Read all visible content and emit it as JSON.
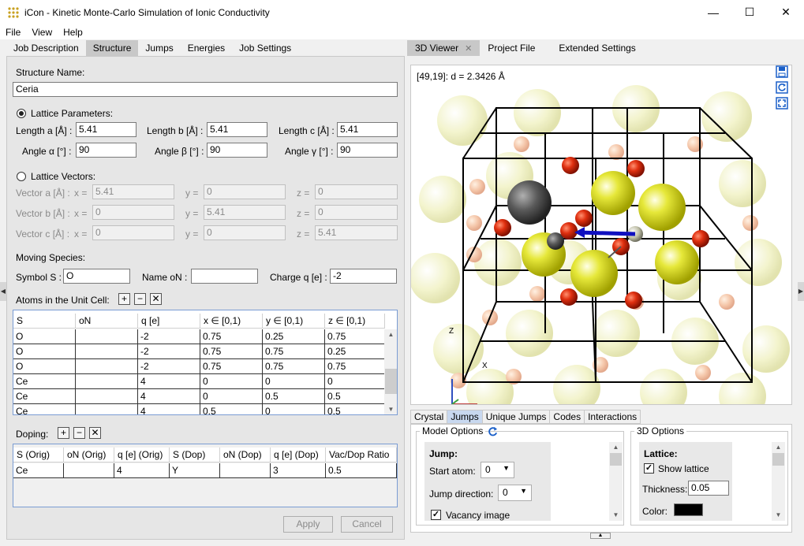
{
  "window": {
    "title": "iCon - Kinetic Monte-Carlo Simulation of Ionic Conductivity",
    "minimize": "—",
    "maximize": "☐",
    "close": "✕"
  },
  "menu": [
    "File",
    "View",
    "Help"
  ],
  "left_tabs": [
    "Job Description",
    "Structure",
    "Jumps",
    "Energies",
    "Job Settings"
  ],
  "structure": {
    "name_label": "Structure Name:",
    "name_value": "Ceria",
    "lattice_params_label": "Lattice Parameters:",
    "length_a_label": "Length a [Å] :",
    "length_a": "5.41",
    "length_b_label": "Length b [Å] :",
    "length_b": "5.41",
    "length_c_label": "Length c [Å] :",
    "length_c": "5.41",
    "angle_a_label": "Angle α [°] :",
    "angle_a": "90",
    "angle_b_label": "Angle β [°] :",
    "angle_b": "90",
    "angle_c_label": "Angle γ [°] :",
    "angle_c": "90",
    "lattice_vectors_label": "Lattice Vectors:",
    "vectors": [
      {
        "label": "Vector a [Å] :",
        "x": "5.41",
        "y": "0",
        "z": "0"
      },
      {
        "label": "Vector b [Å] :",
        "x": "0",
        "y": "5.41",
        "z": "0"
      },
      {
        "label": "Vector c [Å] :",
        "x": "0",
        "y": "0",
        "z": "5.41"
      }
    ],
    "x_label": "x =",
    "y_label": "y =",
    "z_label": "z =",
    "moving_species_label": "Moving Species:",
    "symbol_label": "Symbol S :",
    "symbol_value": "O",
    "name_on_label": "Name oN :",
    "name_on_value": "",
    "charge_label": "Charge q [e] :",
    "charge_value": "-2",
    "atoms_label": "Atoms in the Unit Cell:",
    "atoms_headers": [
      "S",
      "oN",
      "q [e]",
      "x ∈ [0,1)",
      "y ∈ [0,1)",
      "z ∈ [0,1)"
    ],
    "atoms_rows": [
      [
        "O",
        "",
        "-2",
        "0.75",
        "0.25",
        "0.75"
      ],
      [
        "O",
        "",
        "-2",
        "0.75",
        "0.75",
        "0.25"
      ],
      [
        "O",
        "",
        "-2",
        "0.75",
        "0.75",
        "0.75"
      ],
      [
        "Ce",
        "",
        "4",
        "0",
        "0",
        "0"
      ],
      [
        "Ce",
        "",
        "4",
        "0",
        "0.5",
        "0.5"
      ],
      [
        "Ce",
        "",
        "4",
        "0.5",
        "0",
        "0.5"
      ]
    ],
    "doping_label": "Doping:",
    "doping_headers": [
      "S (Orig)",
      "oN (Orig)",
      "q [e] (Orig)",
      "S (Dop)",
      "oN (Dop)",
      "q [e] (Dop)",
      "Vac/Dop Ratio"
    ],
    "doping_rows": [
      [
        "Ce",
        "",
        "4",
        "Y",
        "",
        "3",
        "0.5"
      ]
    ],
    "apply": "Apply",
    "cancel": "Cancel",
    "plus": "+",
    "minus": "−",
    "clear": "✕"
  },
  "right_tabs": {
    "viewer": "3D Viewer",
    "project": "Project File",
    "extended": "Extended Settings"
  },
  "viewer": {
    "readout": "[49,19]: d = 2.3426 Å",
    "axis_z": "Z",
    "axis_x": "X"
  },
  "bottom_tabs": [
    "Crystal",
    "Jumps",
    "Unique Jumps",
    "Codes",
    "Interactions"
  ],
  "model_options": {
    "title": "Model Options",
    "jump_label": "Jump:",
    "start_atom_label": "Start atom:",
    "start_atom": "0",
    "jump_direction_label": "Jump direction:",
    "jump_direction": "0",
    "vacancy_image": "Vacancy image"
  },
  "options3d": {
    "title": "3D Options",
    "lattice_label": "Lattice:",
    "show_lattice": "Show lattice",
    "thickness_label": "Thickness:",
    "thickness": "0.05",
    "color_label": "Color:"
  },
  "colors": {
    "ce": "#d8dc1e",
    "o": "#d03010",
    "y_atom": "#555555",
    "jump_arrow": "#1010c0",
    "lattice_color": "#000000"
  }
}
